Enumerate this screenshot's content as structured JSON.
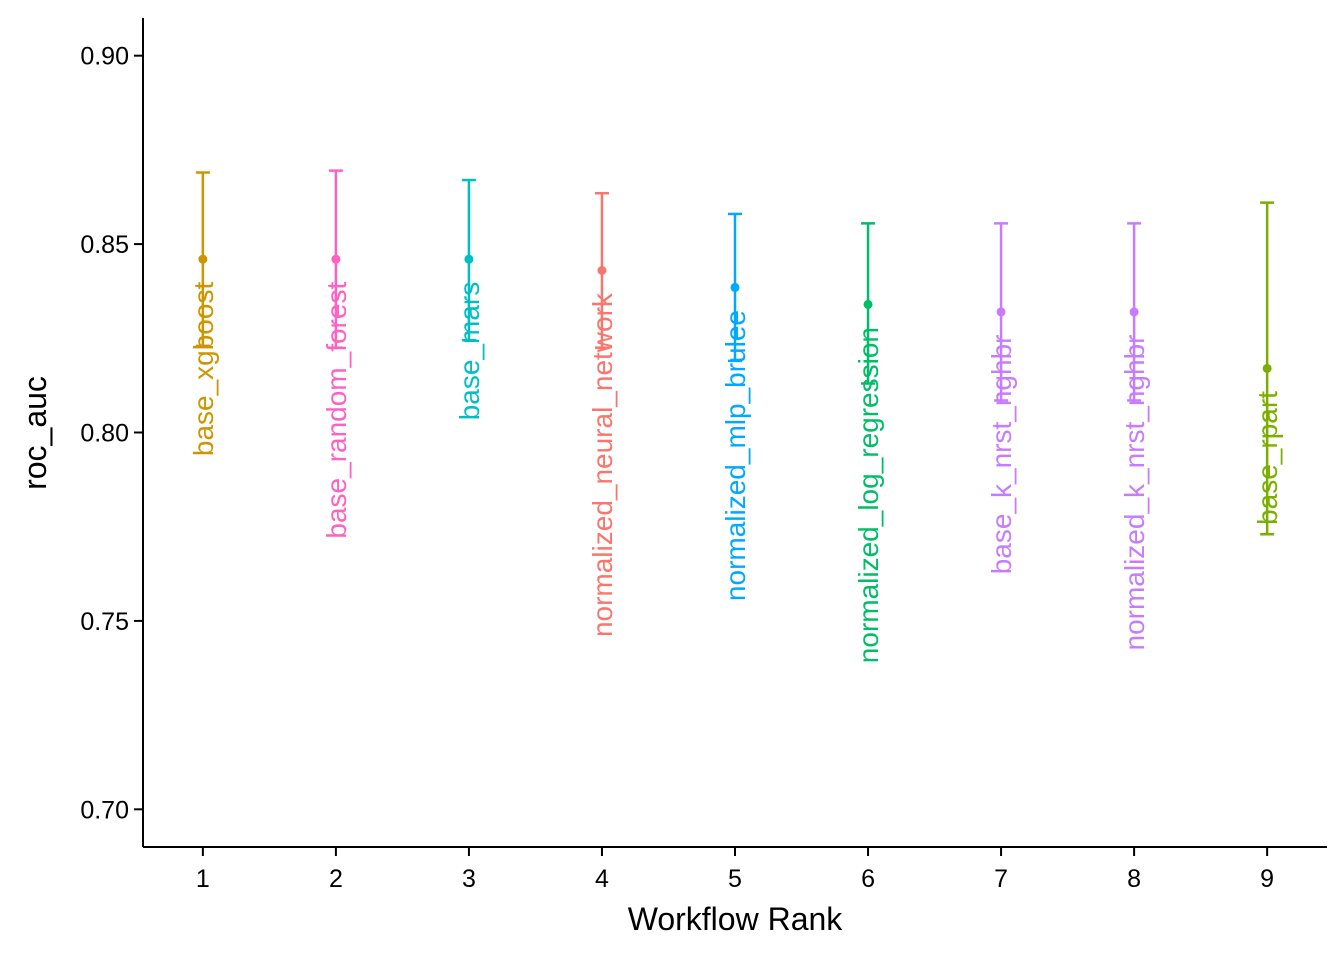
{
  "chart_data": {
    "type": "scatter",
    "title": "",
    "xlabel": "Workflow Rank",
    "ylabel": "roc_auc",
    "xlim": [
      0.55,
      9.45
    ],
    "ylim": [
      0.69,
      0.91
    ],
    "x_ticks": [
      "1",
      "2",
      "3",
      "4",
      "5",
      "6",
      "7",
      "8",
      "9"
    ],
    "y_ticks": [
      "0.70",
      "0.75",
      "0.80",
      "0.85",
      "0.90"
    ],
    "grid": false,
    "legend": "none",
    "points": [
      {
        "rank": 1,
        "label": "base_xgboost",
        "mean": 0.846,
        "lower": 0.823,
        "upper": 0.869,
        "color": "#CD9600"
      },
      {
        "rank": 2,
        "label": "base_random_forest",
        "mean": 0.846,
        "lower": 0.8225,
        "upper": 0.8695,
        "color": "#FF61C3"
      },
      {
        "rank": 3,
        "label": "base_mars",
        "mean": 0.846,
        "lower": 0.8245,
        "upper": 0.867,
        "color": "#00BFC4"
      },
      {
        "rank": 4,
        "label": "normalized_neural_network",
        "mean": 0.843,
        "lower": 0.8225,
        "upper": 0.8635,
        "color": "#F8766D"
      },
      {
        "rank": 5,
        "label": "normalized_mlp_brulee",
        "mean": 0.8385,
        "lower": 0.819,
        "upper": 0.858,
        "color": "#00A9FF"
      },
      {
        "rank": 6,
        "label": "normalized_log_regression",
        "mean": 0.834,
        "lower": 0.813,
        "upper": 0.8555,
        "color": "#00BE67"
      },
      {
        "rank": 7,
        "label": "base_k_nrst_nghbr",
        "mean": 0.832,
        "lower": 0.8085,
        "upper": 0.8555,
        "color": "#C77CFF"
      },
      {
        "rank": 8,
        "label": "normalized_k_nrst_nghbr",
        "mean": 0.832,
        "lower": 0.8085,
        "upper": 0.8555,
        "color": "#C77CFF"
      },
      {
        "rank": 9,
        "label": "base_rpart",
        "mean": 0.817,
        "lower": 0.773,
        "upper": 0.861,
        "color": "#7CAE00"
      }
    ]
  }
}
